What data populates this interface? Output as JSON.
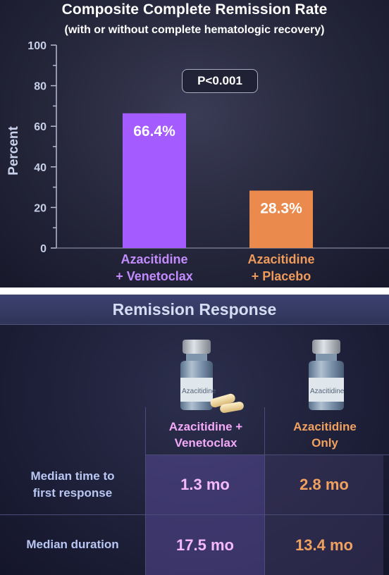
{
  "chart_data": {
    "type": "bar",
    "title": "Composite Complete Remission Rate",
    "subtitle": "(with or without complete hematologic recovery)",
    "ylabel": "Percent",
    "xlabel": "",
    "ylim": [
      0,
      100
    ],
    "yticks": [
      "0",
      "20",
      "40",
      "60",
      "80",
      "100"
    ],
    "categories": [
      [
        "Azacitidine",
        "+ Venetoclax"
      ],
      [
        "Azacitidine",
        "+ Placebo"
      ]
    ],
    "values": [
      66.4,
      28.3
    ],
    "value_labels": [
      "66.4%",
      "28.3%"
    ],
    "bar_colors": [
      "#a45bff",
      "#ea8a4d"
    ],
    "annotation": "P<0.001",
    "grid": false
  },
  "table": {
    "title": "Remission Response",
    "vial_label": "Azacitidine",
    "columns": [
      [
        "Azacitidine +",
        "Venetoclax"
      ],
      [
        "Azacitidine",
        "Only"
      ]
    ],
    "rows": [
      {
        "label": [
          "Median time to",
          "first response"
        ],
        "values": [
          "1.3 mo",
          "2.8 mo"
        ]
      },
      {
        "label": [
          "Median duration"
        ],
        "values": [
          "17.5 mo",
          "13.4 mo"
        ]
      }
    ]
  },
  "colors": {
    "purple_accent": "#a45bff",
    "orange_accent": "#ea8a4d",
    "panel_bg": "#25263a"
  }
}
